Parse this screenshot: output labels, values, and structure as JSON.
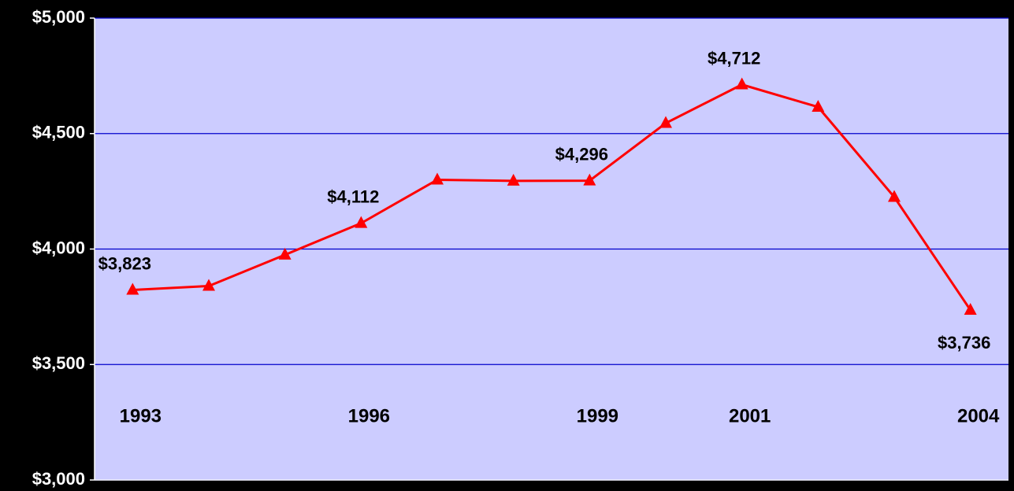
{
  "chart_data": {
    "type": "line",
    "categories": [
      "1993",
      null,
      null,
      "1996",
      null,
      null,
      "1999",
      null,
      "2001",
      null,
      null,
      "2004"
    ],
    "series": [
      {
        "color": "#ff0000",
        "values": [
          3823,
          3840,
          3975,
          4112,
          4300,
          4295,
          4296,
          4545,
          4712,
          4615,
          4225,
          3736
        ],
        "value_labels": [
          "$3,823",
          null,
          null,
          "$4,112",
          null,
          null,
          "$4,296",
          null,
          "$4,712",
          null,
          null,
          "$3,736"
        ]
      }
    ],
    "ylim": [
      3000,
      5000
    ],
    "yticks": [
      {
        "value": 3000,
        "label": "$3,000"
      },
      {
        "value": 3500,
        "label": "$3,500"
      },
      {
        "value": 4000,
        "label": "$4,000"
      },
      {
        "value": 4500,
        "label": "$4,500"
      },
      {
        "value": 5000,
        "label": "$5,000"
      }
    ],
    "grid": true,
    "plot_background": "#ccccff",
    "grid_color": "#0000cc"
  }
}
